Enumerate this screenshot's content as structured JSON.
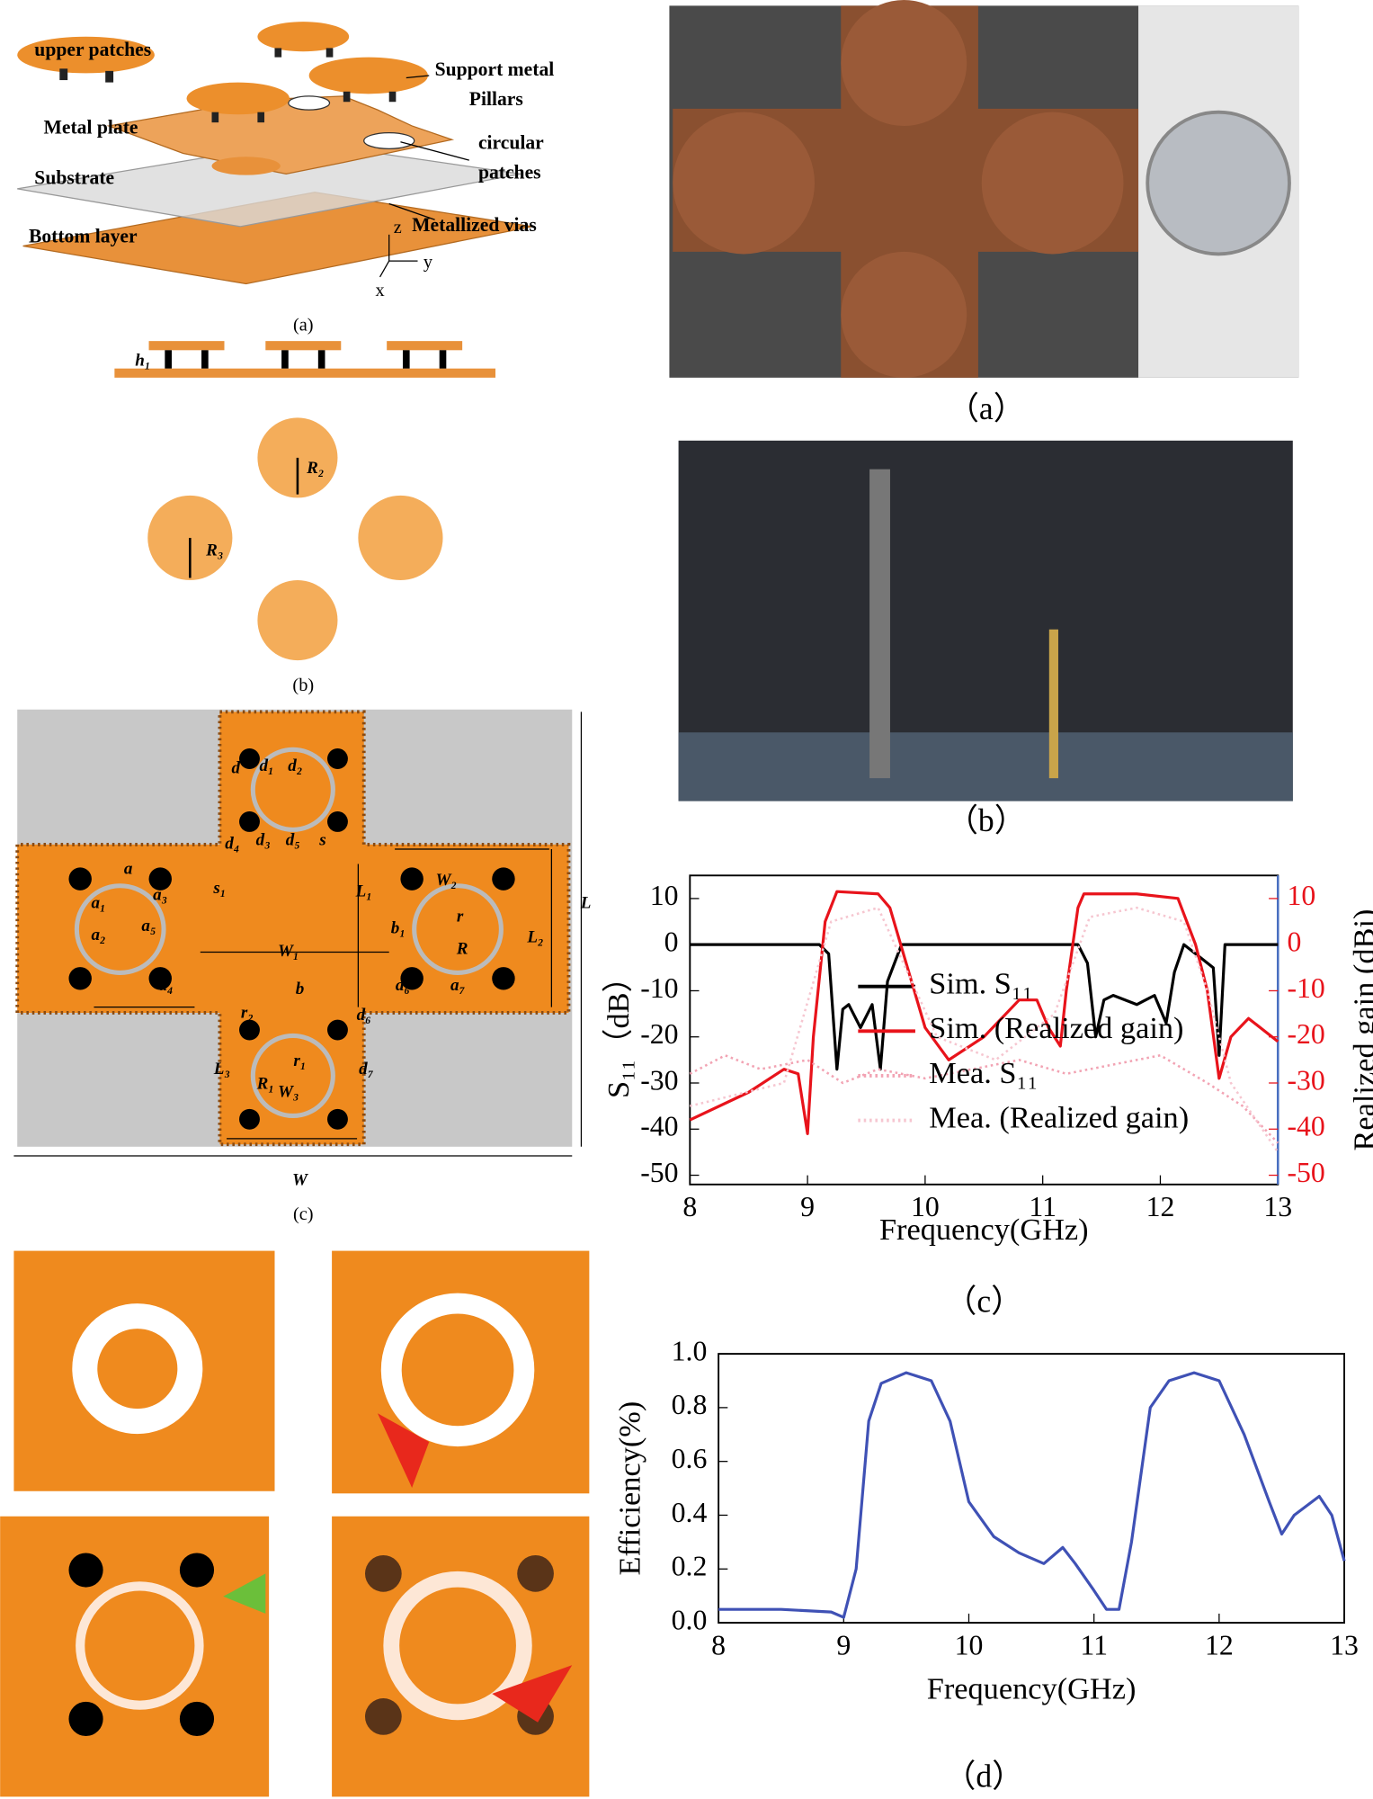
{
  "panel_left_a": {
    "labels": [
      "upper patches",
      "Support metal",
      "Pillars",
      "Metal plate",
      "circular",
      "patches",
      "Substrate",
      "Metallized vias",
      "Bottom layer"
    ],
    "axes": [
      "z",
      "y",
      "x"
    ],
    "caption": "(a)"
  },
  "panel_left_b": {
    "side_label": "h₁",
    "radius_labels": [
      "R₂",
      "R₃"
    ],
    "caption": "(b)"
  },
  "panel_left_c": {
    "labels": [
      "a",
      "a₁",
      "a₂",
      "a₃",
      "a₄",
      "a₅",
      "a₆",
      "a₇",
      "b",
      "b₁",
      "d",
      "d₁",
      "d₂",
      "d₃",
      "d₄",
      "d₅",
      "d₆",
      "d₇",
      "s",
      "s₁",
      "r",
      "r₁",
      "r₂",
      "R",
      "R₁",
      "L",
      "L₁",
      "L₂",
      "L₃",
      "W",
      "W₁",
      "W₂",
      "W₃"
    ],
    "caption": "(c)"
  },
  "photo_captions": [
    "（a）",
    "（b）",
    "（c）",
    "（d）"
  ],
  "chart_data": [
    {
      "type": "line",
      "x_label": "Frequency(GHz)",
      "y_label": "S₁₁（dB）",
      "y2_label": "Realized gain (dBi)",
      "xlim": [
        8,
        13
      ],
      "xticks": [
        8,
        9,
        10,
        11,
        12,
        13
      ],
      "ylim": [
        -52,
        15
      ],
      "yticks": [
        -50,
        -40,
        -30,
        -20,
        -10,
        0,
        10
      ],
      "y2lim": [
        -52,
        15
      ],
      "y2ticks": [
        -50,
        -40,
        -30,
        -20,
        -10,
        0,
        10
      ],
      "legend": "center",
      "series": [
        {
          "name": "Sim. S₁₁",
          "color": "#000000",
          "dashed": false,
          "x": [
            8,
            9.1,
            9.18,
            9.25,
            9.3,
            9.35,
            9.45,
            9.55,
            9.62,
            9.68,
            9.8,
            11.3,
            11.38,
            11.45,
            11.52,
            11.6,
            11.8,
            11.95,
            12.05,
            12.12,
            12.2,
            12.35,
            12.45,
            12.5,
            12.55,
            13
          ],
          "values": [
            0,
            0,
            -2,
            -27,
            -14,
            -13,
            -18,
            -13,
            -27,
            -8,
            0,
            0,
            -4,
            -20,
            -12,
            -11,
            -13,
            -11,
            -17,
            -6,
            0,
            -3,
            -5,
            -24,
            0,
            0
          ]
        },
        {
          "name": "Sim. (Realized gain)",
          "color": "#e8131b",
          "dashed": false,
          "axis": "y2",
          "x": [
            8,
            8.5,
            8.8,
            8.92,
            9.0,
            9.05,
            9.15,
            9.25,
            9.6,
            9.7,
            9.85,
            10.0,
            10.2,
            10.5,
            10.8,
            10.95,
            11.05,
            11.15,
            11.2,
            11.3,
            11.35,
            11.8,
            12.15,
            12.3,
            12.4,
            12.5,
            12.6,
            12.75,
            13
          ],
          "values": [
            -38,
            -32,
            -27,
            -28,
            -41,
            -20,
            5,
            11.5,
            11,
            8,
            -5,
            -18,
            -25,
            -20,
            -12,
            -12,
            -18,
            -22,
            -10,
            8,
            11,
            11,
            10,
            0,
            -10,
            -29,
            -20,
            -16,
            -21
          ]
        },
        {
          "name": "Mea. S₁₁",
          "color": "#f2a3b3",
          "dashed": true,
          "x": [
            8,
            8.3,
            8.6,
            9,
            9.3,
            9.6,
            10,
            10.4,
            10.8,
            11.2,
            11.6,
            12,
            12.4,
            12.7,
            13
          ],
          "values": [
            -28,
            -24,
            -27,
            -25,
            -30,
            -27,
            -29,
            -27,
            -25,
            -28,
            -26,
            -24,
            -30,
            -35,
            -43
          ]
        },
        {
          "name": "Mea. (Realized gain)",
          "color": "#f6c6d0",
          "dashed": true,
          "axis": "y2",
          "x": [
            8,
            8.8,
            9.2,
            9.6,
            10.1,
            10.6,
            11.1,
            11.4,
            11.8,
            12.2,
            12.4,
            12.6,
            13
          ],
          "values": [
            -35,
            -30,
            5,
            8,
            -20,
            -25,
            -15,
            6,
            8,
            5,
            -10,
            -30,
            -45
          ]
        }
      ]
    },
    {
      "type": "line",
      "x_label": "Frequency(GHz)",
      "y_label": "Efficiency(%)",
      "xlim": [
        8,
        13
      ],
      "xticks": [
        8,
        9,
        10,
        11,
        12,
        13
      ],
      "ylim": [
        0,
        1.0
      ],
      "yticks": [
        {
          "value": 0,
          "label": "0.0"
        },
        {
          "value": 0.2,
          "label": "0.2"
        },
        {
          "value": 0.4,
          "label": "0.4"
        },
        {
          "value": 0.6,
          "label": "0.6"
        },
        {
          "value": 0.8,
          "label": "0.8"
        },
        {
          "value": 1.0,
          "label": "1.0"
        }
      ],
      "series": [
        {
          "color": "#3f51b5",
          "dashed": false,
          "x": [
            8,
            8.5,
            8.9,
            9.0,
            9.1,
            9.2,
            9.3,
            9.5,
            9.7,
            9.85,
            10.0,
            10.2,
            10.4,
            10.6,
            10.75,
            10.85,
            11.0,
            11.1,
            11.2,
            11.3,
            11.45,
            11.6,
            11.8,
            12.0,
            12.2,
            12.4,
            12.5,
            12.6,
            12.8,
            12.9,
            13
          ],
          "values": [
            0.05,
            0.05,
            0.04,
            0.02,
            0.2,
            0.75,
            0.89,
            0.93,
            0.9,
            0.75,
            0.45,
            0.32,
            0.26,
            0.22,
            0.28,
            0.22,
            0.12,
            0.05,
            0.05,
            0.3,
            0.8,
            0.9,
            0.93,
            0.9,
            0.7,
            0.45,
            0.33,
            0.4,
            0.47,
            0.4,
            0.23
          ]
        }
      ]
    }
  ]
}
